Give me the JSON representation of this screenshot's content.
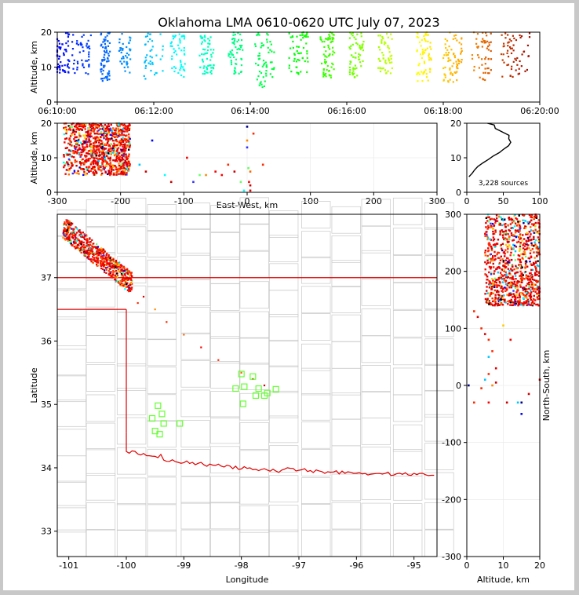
{
  "title": "Oklahoma LMA 0610-0620 UTC July 07, 2023",
  "chart_data": [
    {
      "id": "time_altitude",
      "type": "scatter",
      "xlabel": "",
      "ylabel": "Altitude, km",
      "xticks": [
        "06:10:00",
        "06:12:00",
        "06:14:00",
        "06:16:00",
        "06:18:00",
        "06:20:00"
      ],
      "xlim_minutes": [
        0,
        10
      ],
      "ylim": [
        0,
        20
      ],
      "yticks": [
        0,
        10,
        20
      ],
      "color_by": "time",
      "clusters": [
        {
          "t": 0.1,
          "spread": 0.15,
          "ymin": 8,
          "ymax": 20,
          "n": 60
        },
        {
          "t": 0.5,
          "spread": 0.2,
          "ymin": 8,
          "ymax": 20,
          "n": 50
        },
        {
          "t": 1.0,
          "spread": 0.1,
          "ymin": 6,
          "ymax": 20,
          "n": 70
        },
        {
          "t": 1.4,
          "spread": 0.12,
          "ymin": 8,
          "ymax": 20,
          "n": 40
        },
        {
          "t": 2.0,
          "spread": 0.2,
          "ymin": 6,
          "ymax": 20,
          "n": 40
        },
        {
          "t": 2.5,
          "spread": 0.15,
          "ymin": 6,
          "ymax": 20,
          "n": 50
        },
        {
          "t": 3.1,
          "spread": 0.15,
          "ymin": 8,
          "ymax": 20,
          "n": 60
        },
        {
          "t": 3.7,
          "spread": 0.15,
          "ymin": 8,
          "ymax": 20,
          "n": 55
        },
        {
          "t": 4.3,
          "spread": 0.2,
          "ymin": 4,
          "ymax": 20,
          "n": 60
        },
        {
          "t": 5.0,
          "spread": 0.2,
          "ymin": 8,
          "ymax": 20,
          "n": 55
        },
        {
          "t": 5.6,
          "spread": 0.15,
          "ymin": 7,
          "ymax": 20,
          "n": 70
        },
        {
          "t": 6.2,
          "spread": 0.15,
          "ymin": 7,
          "ymax": 20,
          "n": 60
        },
        {
          "t": 6.8,
          "spread": 0.15,
          "ymin": 8,
          "ymax": 20,
          "n": 50
        },
        {
          "t": 7.6,
          "spread": 0.15,
          "ymin": 6,
          "ymax": 20,
          "n": 60
        },
        {
          "t": 8.2,
          "spread": 0.2,
          "ymin": 5,
          "ymax": 20,
          "n": 70
        },
        {
          "t": 8.8,
          "spread": 0.2,
          "ymin": 6,
          "ymax": 20,
          "n": 55
        },
        {
          "t": 9.5,
          "spread": 0.3,
          "ymin": 7,
          "ymax": 20,
          "n": 60
        }
      ]
    },
    {
      "id": "ew_altitude",
      "type": "scatter",
      "xlabel": "East-West, km",
      "ylabel": "Altitude, km",
      "xlim": [
        -300,
        300
      ],
      "xticks": [
        -300,
        -200,
        -100,
        0,
        100,
        200,
        300
      ],
      "ylim": [
        0,
        20
      ],
      "yticks": [
        0,
        10,
        20
      ],
      "main_cluster": {
        "x_range": [
          -290,
          -185
        ],
        "y_range": [
          5,
          20
        ],
        "n": 900
      },
      "scattered_points": [
        [
          -170,
          8
        ],
        [
          -160,
          6
        ],
        [
          -150,
          15
        ],
        [
          -130,
          5
        ],
        [
          -120,
          3
        ],
        [
          -95,
          10
        ],
        [
          -85,
          3
        ],
        [
          -75,
          5
        ],
        [
          -65,
          5
        ],
        [
          -50,
          6
        ],
        [
          -40,
          5
        ],
        [
          -30,
          8
        ],
        [
          -20,
          6
        ],
        [
          -10,
          3
        ],
        [
          0,
          19
        ],
        [
          0,
          15
        ],
        [
          0,
          13
        ],
        [
          2,
          7
        ],
        [
          5,
          6
        ],
        [
          5,
          2
        ],
        [
          10,
          17
        ],
        [
          5,
          0.5
        ],
        [
          -5,
          0.5
        ],
        [
          25,
          8
        ],
        [
          3,
          3
        ]
      ]
    },
    {
      "id": "altitude_histogram",
      "type": "line",
      "xlim": [
        0,
        100
      ],
      "xticks": [
        0,
        50,
        100
      ],
      "ylim": [
        0,
        20
      ],
      "yticks": [
        0,
        10,
        20
      ],
      "annotation": "3,228 sources",
      "profile": [
        [
          2,
          4.5
        ],
        [
          5,
          5.5
        ],
        [
          12,
          6.5
        ],
        [
          18,
          7.5
        ],
        [
          22,
          8.5
        ],
        [
          28,
          9.5
        ],
        [
          35,
          10.5
        ],
        [
          42,
          11.5
        ],
        [
          48,
          12.5
        ],
        [
          55,
          13.5
        ],
        [
          60,
          14.5
        ],
        [
          58,
          15.5
        ],
        [
          55,
          16.5
        ],
        [
          48,
          17.5
        ],
        [
          42,
          18.5
        ],
        [
          38,
          19.5
        ],
        [
          30,
          20
        ]
      ]
    },
    {
      "id": "plan_view",
      "type": "scatter",
      "xlabel": "Longitude",
      "ylabel": "Latitude",
      "xlim": [
        -101.2,
        -94.6
      ],
      "xticks": [
        -101,
        -100,
        -99,
        -98,
        -97,
        -96,
        -95
      ],
      "ylim": [
        32.6,
        38.0
      ],
      "yticks": [
        33,
        34,
        35,
        36,
        37
      ],
      "main_cluster": {
        "lon_range": [
          -101.1,
          -99.9
        ],
        "lat_range": [
          36.8,
          37.8
        ],
        "n": 700
      },
      "trail_points": [
        [
          -99.7,
          36.7
        ],
        [
          -99.5,
          36.5
        ],
        [
          -99.3,
          36.3
        ],
        [
          -99.0,
          36.1
        ],
        [
          -98.7,
          35.9
        ],
        [
          -98.4,
          35.7
        ],
        [
          -98.0,
          35.5
        ],
        [
          -97.8,
          35.4
        ],
        [
          -97.6,
          35.3
        ],
        [
          -99.8,
          36.6
        ]
      ],
      "stations": [
        [
          -98.0,
          35.48
        ],
        [
          -97.8,
          35.44
        ],
        [
          -98.1,
          35.25
        ],
        [
          -97.95,
          35.28
        ],
        [
          -97.7,
          35.25
        ],
        [
          -97.55,
          35.18
        ],
        [
          -97.4,
          35.24
        ],
        [
          -97.6,
          35.14
        ],
        [
          -97.75,
          35.14
        ],
        [
          -97.97,
          35.01
        ],
        [
          -99.45,
          34.98
        ],
        [
          -99.38,
          34.85
        ],
        [
          -99.55,
          34.78
        ],
        [
          -99.35,
          34.7
        ],
        [
          -99.07,
          34.7
        ],
        [
          -99.5,
          34.58
        ],
        [
          -99.42,
          34.53
        ]
      ]
    },
    {
      "id": "ns_altitude",
      "type": "scatter",
      "xlabel": "Altitude, km",
      "ylabel": "North-South, km",
      "xlim": [
        0,
        20
      ],
      "xticks": [
        0,
        10,
        20
      ],
      "ylim": [
        -300,
        300
      ],
      "yticks": [
        300,
        200,
        100,
        0,
        -100,
        -200,
        -300
      ],
      "main_cluster": {
        "x_range": [
          5,
          20
        ],
        "y_range": [
          140,
          300
        ],
        "n": 900
      },
      "scattered_points": [
        [
          2,
          130
        ],
        [
          3,
          120
        ],
        [
          4,
          100
        ],
        [
          5,
          90
        ],
        [
          6,
          80
        ],
        [
          7,
          60
        ],
        [
          8,
          30
        ],
        [
          6,
          20
        ],
        [
          5,
          10
        ],
        [
          4,
          -5
        ],
        [
          6,
          -30
        ],
        [
          2,
          -30
        ],
        [
          10,
          105
        ],
        [
          12,
          80
        ],
        [
          14,
          -30
        ],
        [
          15,
          -50
        ],
        [
          17,
          -15
        ],
        [
          0.5,
          0
        ],
        [
          7,
          0
        ],
        [
          8,
          5
        ],
        [
          20,
          10
        ],
        [
          15,
          -30
        ],
        [
          11,
          -30
        ],
        [
          6,
          50
        ]
      ]
    }
  ]
}
